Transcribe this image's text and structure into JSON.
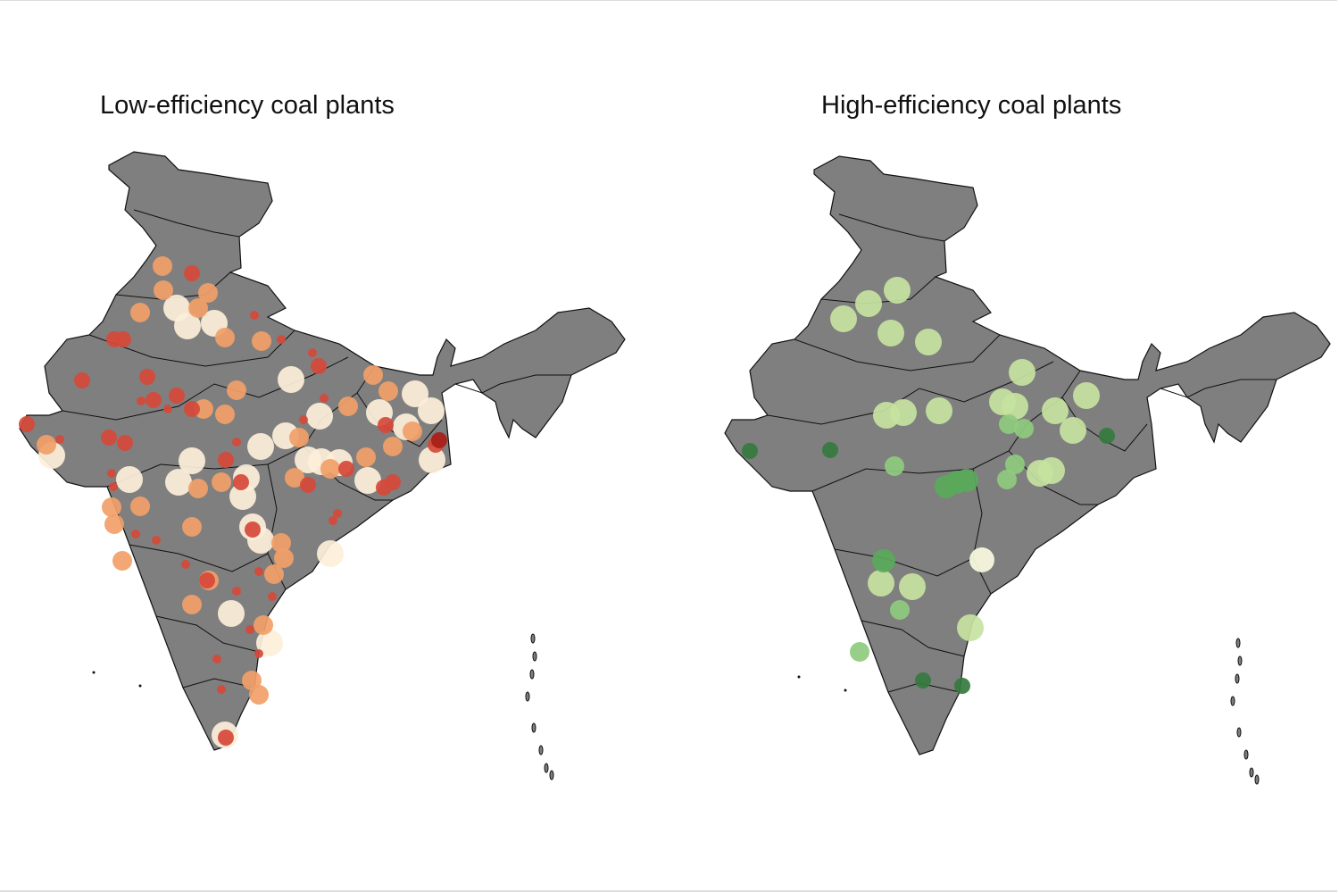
{
  "maps": [
    {
      "title": "Low-efficiency coal plants",
      "palette": {
        "L": "#fdefd9",
        "M": "#f1a068",
        "R": "#d6493a",
        "S": "#d6493a",
        "D": "#a81e18"
      }
    },
    {
      "title": "High-efficiency coal plants",
      "palette": {
        "L": "#c5e3a0",
        "M": "#8fcb7e",
        "N": "#5aa95a",
        "D": "#357a3e",
        "W": "#fbfbe2"
      }
    }
  ],
  "land_color": "#7f7f7f",
  "border_color": "#111111"
}
